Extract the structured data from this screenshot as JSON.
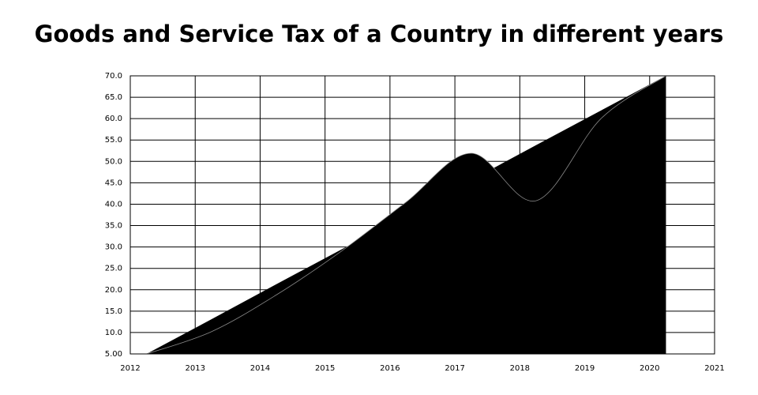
{
  "chart_data": {
    "type": "area",
    "title": "Goods and Service Tax of a Country in different years",
    "x": [
      2012.25,
      2013.25,
      2014.25,
      2015.25,
      2016.25,
      2017.25,
      2018.25,
      2019.25,
      2020.25
    ],
    "series": [
      {
        "color": "#000000",
        "values": [
          5,
          13.1,
          21.3,
          29.4,
          37.5,
          45.6,
          53.8,
          61.9,
          70
        ],
        "smooth": false
      },
      {
        "color": "#000000",
        "values": [
          5,
          10.2,
          18.8,
          29,
          40.5,
          51.9,
          40.8,
          60,
          70
        ],
        "smooth": true
      }
    ],
    "xlim": [
      2012,
      2021
    ],
    "xticks": [
      2012,
      2013,
      2014,
      2015,
      2016,
      2017,
      2018,
      2019,
      2020,
      2021
    ],
    "ylim": [
      5,
      70
    ],
    "yticks": [
      {
        "value": 5,
        "label": "5.00"
      },
      {
        "value": 10,
        "label": "10.0"
      },
      {
        "value": 15,
        "label": "15.0"
      },
      {
        "value": 20,
        "label": "20.0"
      },
      {
        "value": 25,
        "label": "25.0"
      },
      {
        "value": 30,
        "label": "30.0"
      },
      {
        "value": 35,
        "label": "35.0"
      },
      {
        "value": 40,
        "label": "40.0"
      },
      {
        "value": 45,
        "label": "45.0"
      },
      {
        "value": 50,
        "label": "50.0"
      },
      {
        "value": 55,
        "label": "55.0"
      },
      {
        "value": 60,
        "label": "60.0"
      },
      {
        "value": 65,
        "label": "65.0"
      },
      {
        "value": 70,
        "label": "70.0"
      }
    ],
    "grid": true
  }
}
